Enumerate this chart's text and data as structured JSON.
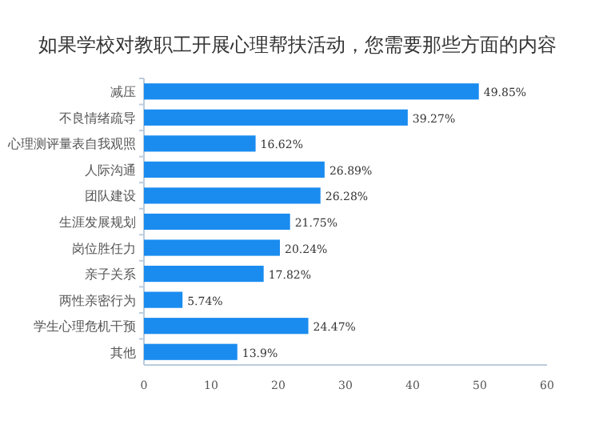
{
  "chart_data": {
    "type": "bar",
    "orientation": "horizontal",
    "title": "如果学校对教职工开展心理帮扶活动，您需要那些方面的内容",
    "categories": [
      "减压",
      "不良情绪疏导",
      "心理测评量表自我观照",
      "人际沟通",
      "团队建设",
      "生涯发展规划",
      "岗位胜任力",
      "亲子关系",
      "两性亲密行为",
      "学生心理危机干预",
      "其他"
    ],
    "values": [
      49.85,
      39.27,
      16.62,
      26.89,
      26.28,
      21.75,
      20.24,
      17.82,
      5.74,
      24.47,
      13.9
    ],
    "value_labels": [
      "49.85%",
      "39.27%",
      "16.62%",
      "26.89%",
      "26.28%",
      "21.75%",
      "20.24%",
      "17.82%",
      "5.74%",
      "24.47%",
      "13.9%"
    ],
    "color": "#1a8cf0",
    "xlim": [
      0,
      60
    ],
    "xticks": [
      0,
      10,
      20,
      30,
      40,
      50,
      60
    ]
  }
}
